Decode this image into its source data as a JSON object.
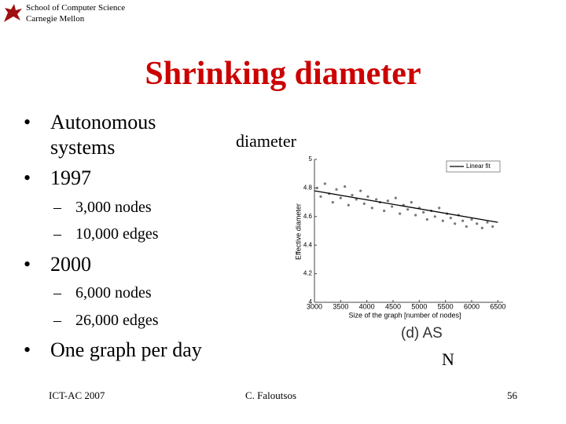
{
  "header": {
    "line1": "School of Computer Science",
    "line2": "Carnegie Mellon"
  },
  "title": "Shrinking diameter",
  "bullets": [
    {
      "text": "Autonomous systems"
    },
    {
      "text": "1997",
      "sub": [
        "3,000 nodes",
        "10,000 edges"
      ]
    },
    {
      "text": "2000",
      "sub": [
        "6,000 nodes",
        "26,000 edges"
      ]
    },
    {
      "text": "One graph per day"
    }
  ],
  "chart_data": {
    "type": "scatter",
    "x_label": "Size of the graph [number of nodes]",
    "y_label": "Effective diameter",
    "caption": "(d) AS",
    "annotations": [
      "diameter",
      "N"
    ],
    "xlim": [
      3000,
      6600
    ],
    "ylim": [
      4,
      5
    ],
    "xticks": [
      3000,
      3500,
      4000,
      4500,
      5000,
      5500,
      6000,
      6500
    ],
    "yticks": [
      4,
      4.2,
      4.4,
      4.6,
      4.8,
      5
    ],
    "legend": "top-right",
    "points": {
      "color": "#777777",
      "x": [
        3050,
        3120,
        3200,
        3280,
        3350,
        3420,
        3500,
        3580,
        3650,
        3720,
        3800,
        3880,
        3950,
        4020,
        4100,
        4180,
        4250,
        4330,
        4400,
        4480,
        4550,
        4630,
        4700,
        4780,
        4850,
        4930,
        5000,
        5080,
        5150,
        5230,
        5300,
        5380,
        5450,
        5530,
        5600,
        5680,
        5750,
        5830,
        5900,
        6000,
        6100,
        6200,
        6300,
        6400
      ],
      "values": [
        4.8,
        4.74,
        4.83,
        4.76,
        4.7,
        4.79,
        4.73,
        4.81,
        4.68,
        4.75,
        4.72,
        4.78,
        4.69,
        4.74,
        4.66,
        4.72,
        4.7,
        4.64,
        4.71,
        4.67,
        4.73,
        4.62,
        4.68,
        4.65,
        4.7,
        4.61,
        4.66,
        4.63,
        4.58,
        4.64,
        4.6,
        4.66,
        4.57,
        4.62,
        4.59,
        4.55,
        4.61,
        4.57,
        4.53,
        4.58,
        4.55,
        4.52,
        4.56,
        4.53
      ]
    },
    "fit": {
      "name": "Linear fit",
      "color": "#000000",
      "x": [
        3000,
        6500
      ],
      "values": [
        4.78,
        4.56
      ]
    }
  },
  "footer": {
    "left": "ICT-AC 2007",
    "center": "C. Faloutsos",
    "right": "56"
  }
}
